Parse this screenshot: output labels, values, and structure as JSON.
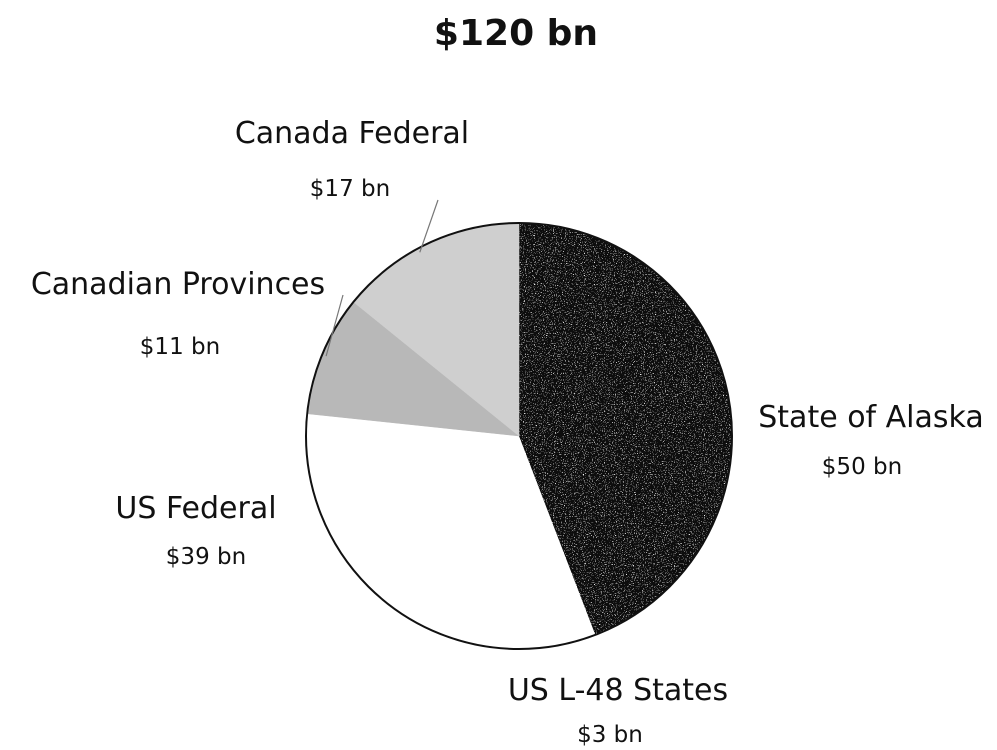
{
  "chart_data": {
    "type": "pie",
    "title": "$120 bn",
    "unit": "bn",
    "slices": [
      {
        "name": "State of Alaska",
        "value": 50,
        "value_label": "$50 bn",
        "color": "#0a0a0a"
      },
      {
        "name": "US L-48 States",
        "value": 3,
        "value_label": "$3 bn",
        "color": "#0a0a0a"
      },
      {
        "name": "US Federal",
        "value": 39,
        "value_label": "$39 bn",
        "color": "#ffffff"
      },
      {
        "name": "Canadian Provinces",
        "value": 11,
        "value_label": "$11 bn",
        "color": "#b8b8b8"
      },
      {
        "name": "Canada Federal",
        "value": 17,
        "value_label": "$17 bn",
        "color": "#cfcfcf"
      }
    ],
    "start": "12 o'clock",
    "direction": "clockwise",
    "outline_color": "#111111",
    "legend": "none (labels beside slices)"
  }
}
